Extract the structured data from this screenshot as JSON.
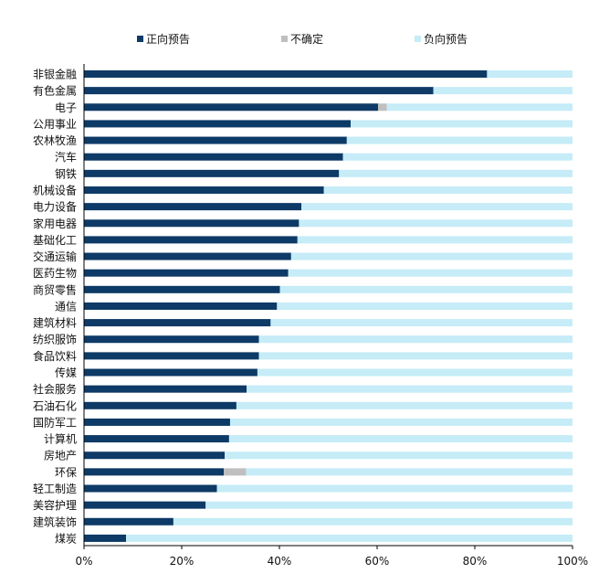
{
  "chart_data": {
    "type": "bar",
    "orientation": "horizontal",
    "stacked": true,
    "categories": [
      "非银金融",
      "有色金属",
      "电子",
      "公用事业",
      "农林牧渔",
      "汽车",
      "钢铁",
      "机械设备",
      "电力设备",
      "家用电器",
      "基础化工",
      "交通运输",
      "医药生物",
      "商贸零售",
      "通信",
      "建筑材料",
      "纺织服饰",
      "食品饮料",
      "传媒",
      "社会服务",
      "石油石化",
      "国防军工",
      "计算机",
      "房地产",
      "环保",
      "轻工制造",
      "美容护理",
      "建筑装饰",
      "煤炭"
    ],
    "series": [
      {
        "name": "正向预告",
        "color": "#0d3a66",
        "values": [
          82.5,
          71.5,
          60.2,
          54.6,
          53.8,
          53.0,
          52.2,
          49.1,
          44.5,
          44.0,
          43.7,
          42.4,
          41.8,
          40.1,
          39.5,
          38.2,
          35.8,
          35.8,
          35.5,
          33.3,
          31.2,
          29.9,
          29.7,
          28.8,
          28.6,
          27.2,
          24.9,
          18.3,
          8.6
        ]
      },
      {
        "name": "不确定",
        "color": "#bfbfbf",
        "values": [
          0,
          0,
          1.8,
          0,
          0,
          0,
          0,
          0,
          0,
          0,
          0,
          0,
          0,
          0,
          0,
          0,
          0,
          0,
          0,
          0,
          0,
          0,
          0,
          0,
          4.6,
          0,
          0,
          0,
          0
        ]
      },
      {
        "name": "负向预告",
        "color": "#c5ecf7",
        "values": [
          17.5,
          28.5,
          38.0,
          45.4,
          46.2,
          47.0,
          47.8,
          50.9,
          55.5,
          56.0,
          56.3,
          57.6,
          58.2,
          59.9,
          60.5,
          61.8,
          64.2,
          64.2,
          64.5,
          66.7,
          68.8,
          70.1,
          70.3,
          71.2,
          66.8,
          72.8,
          75.1,
          81.7,
          91.4
        ]
      }
    ],
    "x_ticks": [
      "0%",
      "20%",
      "40%",
      "60%",
      "80%",
      "100%"
    ],
    "xlim": [
      0,
      100
    ],
    "grid": false,
    "legend_position": "top"
  }
}
